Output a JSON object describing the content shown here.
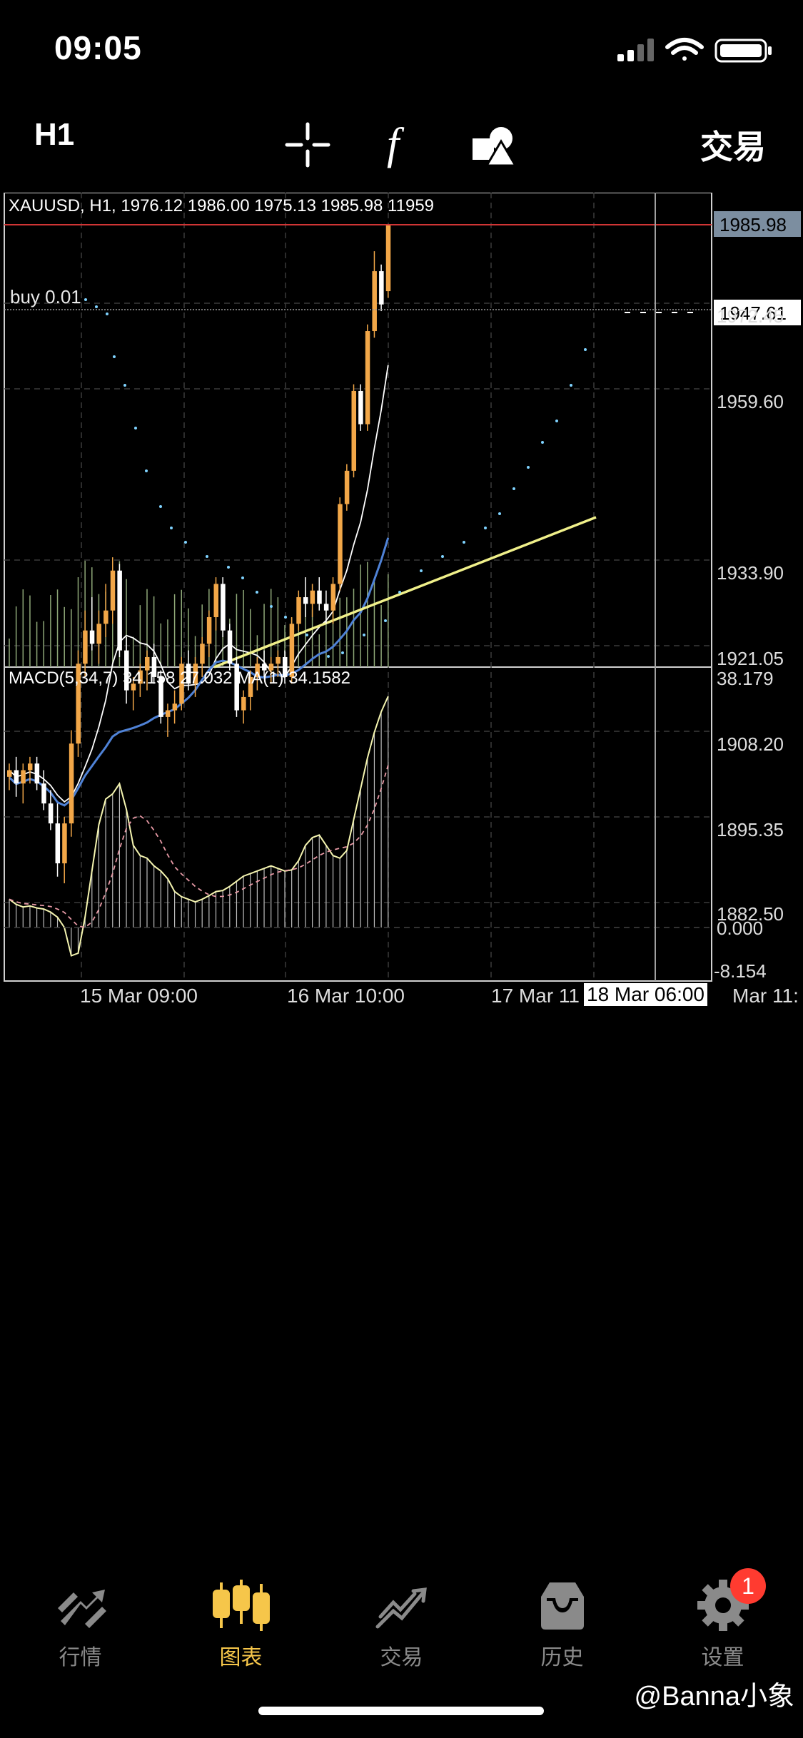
{
  "status_bar": {
    "time": "09:05"
  },
  "toolbar": {
    "timeframe": "H1",
    "trade_label": "交易"
  },
  "chart": {
    "info_line": "XAUUSD, H1, 1976.12 1986.00 1975.13 1985.98 11959",
    "price_labels": [
      "1972.45",
      "1959.60",
      "1933.90",
      "1921.05",
      "1908.20",
      "1895.35",
      "1882.50"
    ],
    "current_price": "1985.98",
    "order_line_label": "buy 0.01",
    "order_price": "1947.61",
    "macd_info": "MACD(5,34,7) 34.158 27.032 MA(1) 34.1582",
    "macd_labels": [
      "38.179",
      "0.000",
      "-8.154"
    ],
    "time_labels": [
      "15 Mar 09:00",
      "16 Mar 10:00",
      "17 Mar 11",
      "Mar 11:"
    ],
    "crosshair_time": "18 Mar 06:00",
    "colors": {
      "bull": "#f2a748",
      "bear": "#ffffff",
      "ma_fast": "#ffffff",
      "ma_mid": "#4f82d6",
      "ma_slow": "#f0f08a",
      "sar": "#7fd3ff",
      "grid": "#3a3a3a",
      "price_line": "#d03535"
    }
  },
  "tabs": [
    {
      "label": "行情",
      "icon": "quotes-icon"
    },
    {
      "label": "图表",
      "icon": "chart-icon"
    },
    {
      "label": "交易",
      "icon": "trade-icon"
    },
    {
      "label": "历史",
      "icon": "history-icon"
    },
    {
      "label": "设置",
      "icon": "settings-icon"
    }
  ],
  "badge_count": "1",
  "watermark": "@Banna小象"
}
